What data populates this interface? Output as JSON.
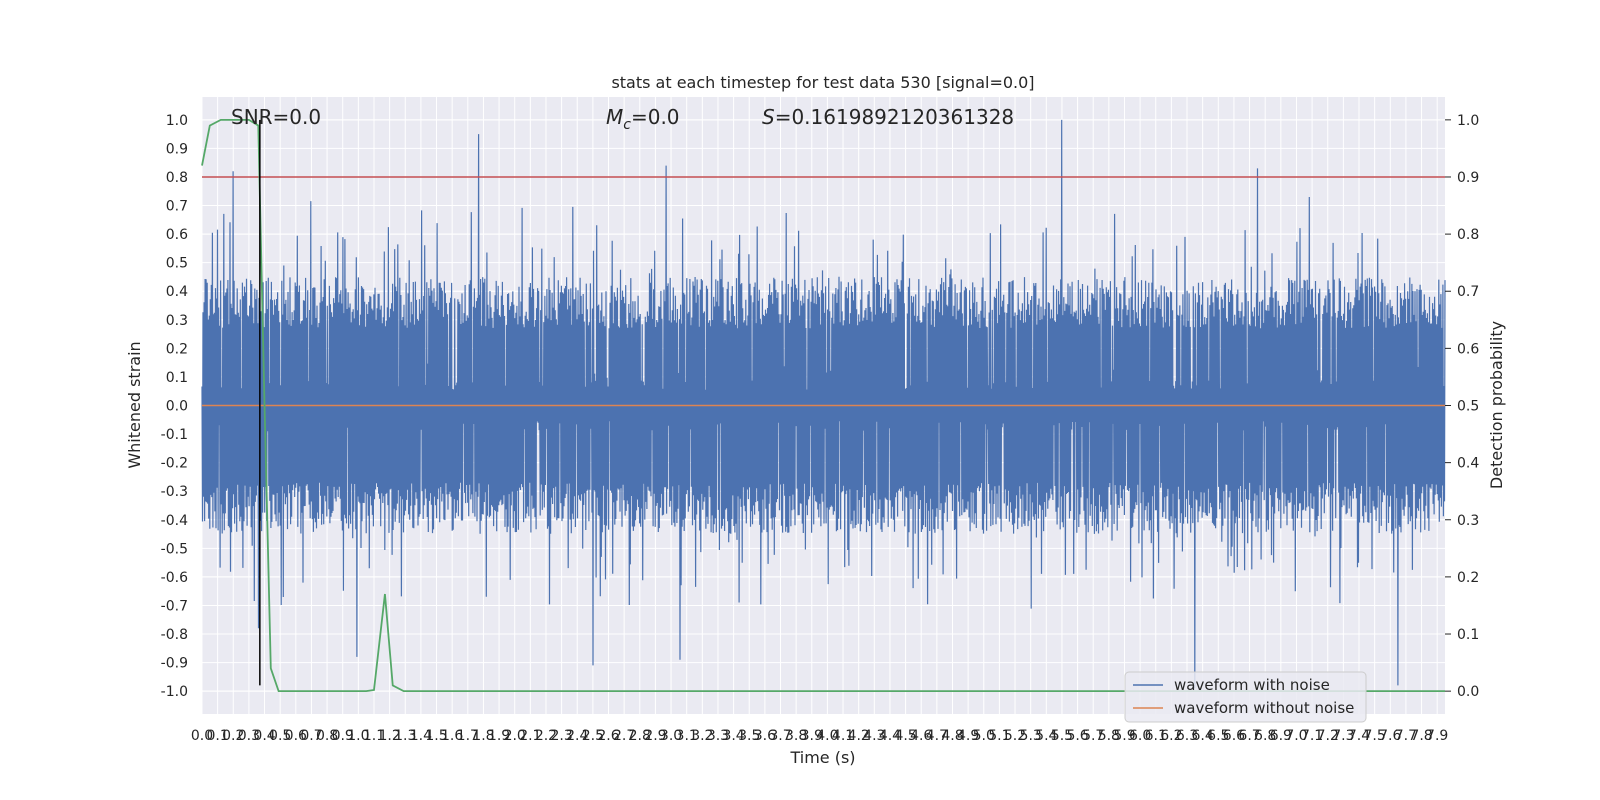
{
  "chart_data": {
    "type": "line",
    "title": "stats at each timestep for test data 530 [signal=0.0]",
    "xlabel": "Time (s)",
    "ylabel": "Whitened strain",
    "ylabel_right": "Detection probability",
    "annotations": {
      "snr": "SNR=0.0",
      "mc_symbol": "M",
      "mc_sub": "c",
      "mc_value": "=0.0",
      "s_symbol": "S",
      "s_value": "=0.1619892120361328"
    },
    "xlim": [
      0.0,
      7.95
    ],
    "ylim_left": [
      -1.08,
      1.08
    ],
    "ylim_right": [
      -0.04,
      1.04
    ],
    "x_ticks": [
      0.0,
      0.1,
      0.2,
      0.3,
      0.4,
      0.5,
      0.6,
      0.7,
      0.8,
      0.9,
      1.0,
      1.1,
      1.2,
      1.3,
      1.4,
      1.5,
      1.6,
      1.7,
      1.8,
      1.9,
      2.0,
      2.1,
      2.2,
      2.3,
      2.4,
      2.5,
      2.6,
      2.7,
      2.8,
      2.9,
      3.0,
      3.1,
      3.2,
      3.3,
      3.4,
      3.5,
      3.6,
      3.7,
      3.8,
      3.9,
      4.0,
      4.1,
      4.2,
      4.3,
      4.4,
      4.5,
      4.6,
      4.7,
      4.8,
      4.9,
      5.0,
      5.1,
      5.2,
      5.3,
      5.4,
      5.5,
      5.6,
      5.7,
      5.8,
      5.9,
      6.0,
      6.1,
      6.2,
      6.3,
      6.4,
      6.5,
      6.6,
      6.7,
      6.8,
      6.9,
      7.0,
      7.1,
      7.2,
      7.3,
      7.4,
      7.5,
      7.6,
      7.7,
      7.8,
      7.9
    ],
    "y_ticks_left": [
      -1.0,
      -0.9,
      -0.8,
      -0.7,
      -0.6,
      -0.5,
      -0.4,
      -0.3,
      -0.2,
      -0.1,
      0.0,
      0.1,
      0.2,
      0.3,
      0.4,
      0.5,
      0.6,
      0.7,
      0.8,
      0.9,
      1.0
    ],
    "y_ticks_right": [
      0.0,
      0.1,
      0.2,
      0.3,
      0.4,
      0.5,
      0.6,
      0.7,
      0.8,
      0.9,
      1.0
    ],
    "threshold": {
      "axis": "right",
      "y": 0.9,
      "color": "#c44e52"
    },
    "peak_marker": {
      "x": 0.37,
      "y_from": -0.98,
      "y_to": 1.0,
      "color": "#000000"
    },
    "series": [
      {
        "name": "waveform with noise",
        "axis": "left",
        "color": "#4c72b0",
        "kind": "noise",
        "typical_amplitude": 0.45,
        "peaks": [
          {
            "x": 0.2,
            "y": 0.82
          },
          {
            "x": 1.77,
            "y": 0.95
          },
          {
            "x": 2.97,
            "y": 0.84
          },
          {
            "x": 5.5,
            "y": 1.0
          },
          {
            "x": 6.75,
            "y": 0.83
          },
          {
            "x": 0.36,
            "y": -0.78
          },
          {
            "x": 0.99,
            "y": -0.88
          },
          {
            "x": 2.5,
            "y": -0.91
          },
          {
            "x": 3.06,
            "y": -0.89
          },
          {
            "x": 6.35,
            "y": -0.99
          },
          {
            "x": 7.65,
            "y": -0.98
          }
        ]
      },
      {
        "name": "waveform without noise",
        "axis": "left",
        "color": "#dd8452",
        "x": [
          0.0,
          7.95
        ],
        "y": [
          0.0,
          0.0
        ]
      },
      {
        "axis": "right",
        "color": "#55a868",
        "x": [
          0.0,
          0.05,
          0.12,
          0.2,
          0.3,
          0.36,
          0.4,
          0.44,
          0.49,
          0.8,
          1.05,
          1.1,
          1.17,
          1.22,
          1.29,
          7.95
        ],
        "y": [
          0.92,
          0.99,
          1.0,
          1.0,
          1.0,
          0.99,
          0.5,
          0.04,
          0.0,
          0.0,
          0.0,
          0.002,
          0.17,
          0.01,
          0.0,
          0.0
        ]
      }
    ],
    "legend": {
      "position": "bottom-right"
    },
    "grid": true
  }
}
